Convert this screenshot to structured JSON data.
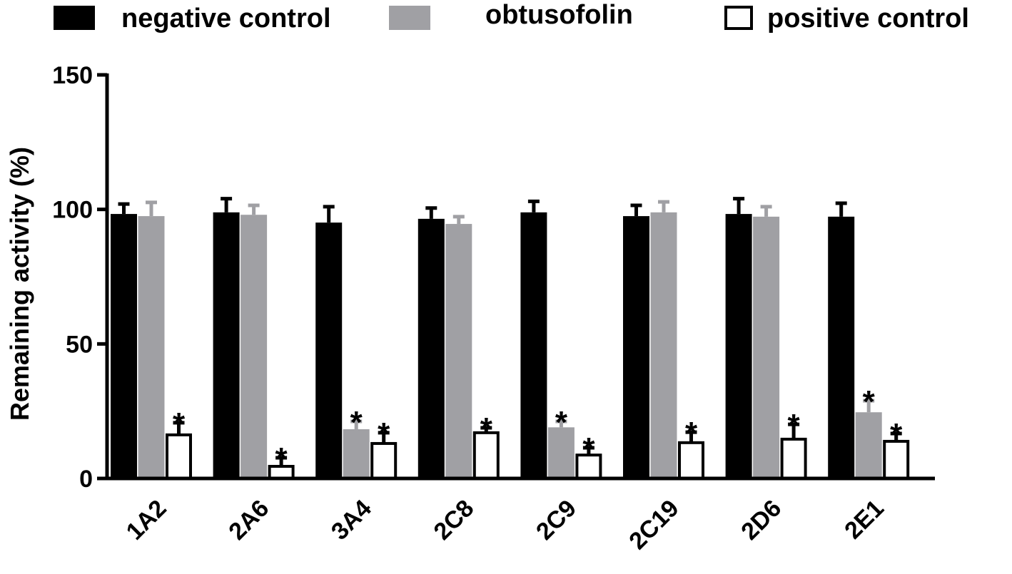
{
  "chart_data": {
    "type": "bar",
    "title": "",
    "xlabel": "",
    "ylabel": "Remaining activity (%)",
    "ylim": [
      0,
      150
    ],
    "yticks": [
      0,
      50,
      100,
      150
    ],
    "grid": false,
    "legend_position": "top",
    "categories": [
      "1A2",
      "2A6",
      "3A4",
      "2C8",
      "2C9",
      "2C19",
      "2D6",
      "2E1"
    ],
    "series": [
      {
        "name": "negative control",
        "color": "#000000",
        "values": [
          98.3,
          98.9,
          95.1,
          96.5,
          98.9,
          97.5,
          98.3,
          97.3
        ],
        "errors": [
          3.7,
          5.1,
          5.9,
          4.0,
          4.1,
          4.0,
          5.7,
          5.0
        ],
        "significant": [
          false,
          false,
          false,
          false,
          false,
          false,
          false,
          false
        ]
      },
      {
        "name": "obtusofolin",
        "color": "#a0a0a4",
        "values": [
          97.5,
          98.0,
          18.3,
          94.6,
          19.0,
          98.9,
          97.3,
          24.6
        ],
        "errors": [
          5.1,
          3.5,
          2.9,
          2.7,
          2.2,
          3.9,
          3.7,
          4.3
        ],
        "significant": [
          false,
          false,
          true,
          false,
          true,
          false,
          false,
          true
        ]
      },
      {
        "name": "positive control",
        "color": "#ffffff",
        "values": [
          16.2,
          4.5,
          13.0,
          17.0,
          8.7,
          13.3,
          14.6,
          13.8
        ],
        "errors": [
          4.5,
          3.2,
          4.0,
          1.8,
          2.7,
          3.9,
          5.5,
          2.9
        ],
        "significant": [
          true,
          true,
          true,
          true,
          true,
          true,
          true,
          true
        ]
      }
    ],
    "significance_marker": "*"
  }
}
